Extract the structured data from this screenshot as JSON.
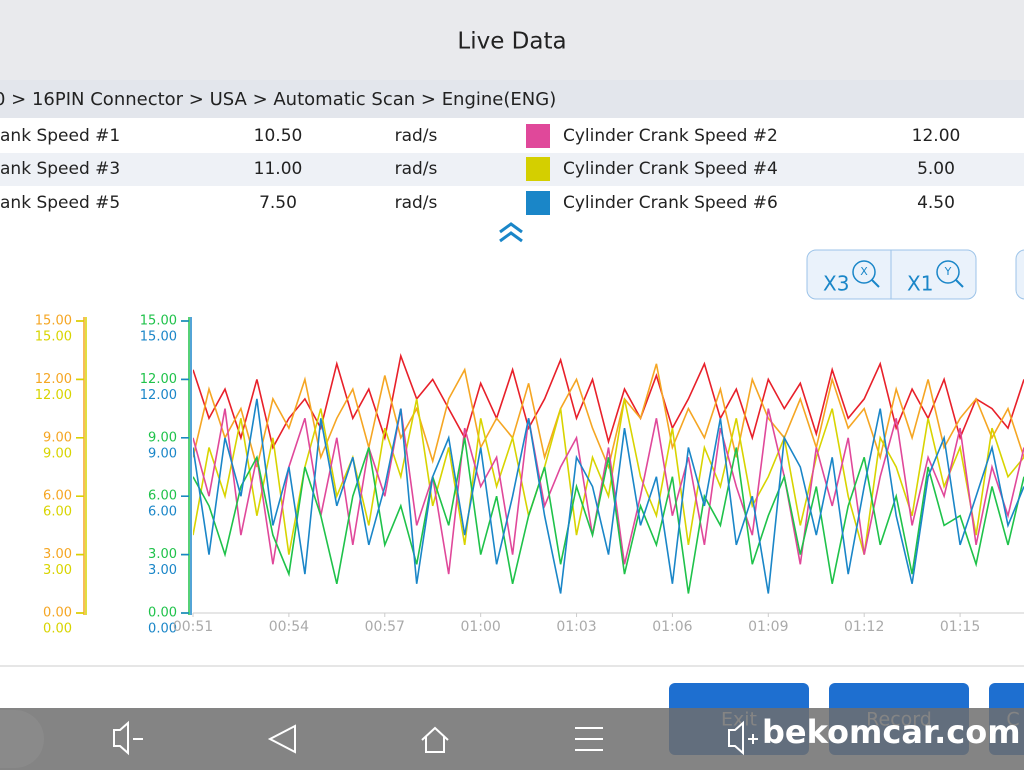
{
  "header": {
    "title": "Live Data"
  },
  "breadcrumb": "0 > 16PIN Connector  > USA  > Automatic Scan  > Engine(ENG)",
  "table": {
    "rows": [
      [
        "ank Speed #1",
        "10.50",
        "rad/s",
        "Cylinder Crank Speed #2",
        "12.00"
      ],
      [
        "ank Speed #3",
        "11.00",
        "rad/s",
        "Cylinder Crank Speed #4",
        "5.00"
      ],
      [
        "ank Speed #5",
        "7.50",
        "rad/s",
        "Cylinder Crank Speed #6",
        "4.50"
      ]
    ],
    "swatches": [
      "#e0489a",
      "#d4cf00",
      "#1a86c8"
    ]
  },
  "zoom": [
    {
      "label": "X3",
      "icon": "X"
    },
    {
      "label": "X1",
      "icon": "Y"
    }
  ],
  "chart_data": {
    "type": "line",
    "xlim": [
      51,
      77
    ],
    "xticks": [
      {
        "value": 51,
        "label": "00:51"
      },
      {
        "value": 54,
        "label": "00:54"
      },
      {
        "value": 57,
        "label": "00:57"
      },
      {
        "value": 60,
        "label": "01:00"
      },
      {
        "value": 63,
        "label": "01:03"
      },
      {
        "value": 66,
        "label": "01:06"
      },
      {
        "value": 69,
        "label": "01:09"
      },
      {
        "value": 72,
        "label": "01:12"
      },
      {
        "value": 75,
        "label": "01:15"
      }
    ],
    "ylim": [
      0,
      15
    ],
    "y_axes": [
      {
        "color": "#f5a623",
        "ticks": [
          {
            "value": 15,
            "label": "15.00"
          },
          {
            "value": 12,
            "label": "12.00"
          },
          {
            "value": 9,
            "label": "9.00"
          },
          {
            "value": 6,
            "label": "6.00"
          },
          {
            "value": 3,
            "label": "3.00"
          },
          {
            "value": 0,
            "label": "0.00"
          }
        ]
      },
      {
        "color": "#d8d400",
        "ticks": [
          {
            "value": 15,
            "label": "15.00"
          },
          {
            "value": 12,
            "label": "12.00"
          },
          {
            "value": 9,
            "label": "9.00"
          },
          {
            "value": 6,
            "label": "6.00"
          },
          {
            "value": 3,
            "label": "3.00"
          },
          {
            "value": 0,
            "label": "0.00"
          }
        ]
      },
      {
        "color": "#1fc24a",
        "ticks": [
          {
            "value": 15,
            "label": "15.00"
          },
          {
            "value": 12,
            "label": "12.00"
          },
          {
            "value": 9,
            "label": "9.00"
          },
          {
            "value": 6,
            "label": "6.00"
          },
          {
            "value": 3,
            "label": "3.00"
          },
          {
            "value": 0,
            "label": "0.00"
          }
        ]
      },
      {
        "color": "#1a86c8",
        "ticks": [
          {
            "value": 15,
            "label": "15.00"
          },
          {
            "value": 12,
            "label": "12.00"
          },
          {
            "value": 9,
            "label": "9.00"
          },
          {
            "value": 6,
            "label": "6.00"
          },
          {
            "value": 3,
            "label": "3.00"
          },
          {
            "value": 0,
            "label": "0.00"
          }
        ]
      }
    ],
    "x": [
      51,
      51.5,
      52,
      52.5,
      53,
      53.5,
      54,
      54.5,
      55,
      55.5,
      56,
      56.5,
      57,
      57.5,
      58,
      58.5,
      59,
      59.5,
      60,
      60.5,
      61,
      61.5,
      62,
      62.5,
      63,
      63.5,
      64,
      64.5,
      65,
      65.5,
      66,
      66.5,
      67,
      67.5,
      68,
      68.5,
      69,
      69.5,
      70,
      70.5,
      71,
      71.5,
      72,
      72.5,
      73,
      73.5,
      74,
      74.5,
      75,
      75.5,
      76,
      76.5,
      77
    ],
    "series": [
      {
        "color": "#e8202a",
        "values": [
          12.5,
          10.0,
          11.5,
          9.0,
          12.0,
          8.5,
          10.0,
          11.0,
          9.5,
          12.8,
          10.0,
          11.5,
          9.0,
          13.2,
          11.0,
          12.0,
          10.5,
          9.0,
          11.8,
          10.0,
          12.5,
          9.5,
          11.0,
          13.0,
          10.0,
          12.0,
          8.8,
          11.5,
          10.0,
          12.2,
          9.5,
          11.0,
          12.8,
          10.0,
          11.5,
          9.0,
          12.0,
          10.5,
          11.8,
          9.2,
          12.5,
          10.0,
          11.0,
          12.8,
          9.5,
          11.5,
          10.0,
          12.0,
          9.0,
          11.0,
          10.5,
          9.5,
          12.0
        ]
      },
      {
        "color": "#f5a623",
        "values": [
          8.0,
          11.5,
          9.0,
          10.5,
          7.5,
          11.0,
          9.5,
          12.0,
          8.0,
          10.0,
          11.5,
          8.5,
          12.2,
          9.0,
          10.5,
          7.8,
          11.0,
          12.5,
          8.5,
          10.0,
          9.0,
          11.8,
          8.0,
          10.5,
          12.0,
          9.5,
          7.5,
          11.0,
          10.0,
          12.8,
          8.5,
          10.5,
          9.0,
          11.5,
          8.0,
          12.0,
          10.0,
          9.0,
          11.0,
          8.5,
          12.0,
          9.5,
          10.5,
          8.0,
          11.5,
          9.0,
          12.0,
          8.5,
          10.0,
          11.0,
          9.0,
          10.5,
          8.0
        ]
      },
      {
        "color": "#d8d400",
        "values": [
          4.0,
          8.5,
          6.0,
          10.0,
          5.0,
          9.0,
          3.0,
          7.5,
          10.5,
          6.0,
          8.0,
          4.5,
          9.5,
          7.0,
          11.0,
          5.5,
          8.5,
          3.5,
          10.0,
          6.5,
          9.0,
          5.0,
          7.5,
          10.5,
          4.0,
          8.0,
          6.0,
          11.0,
          7.0,
          5.0,
          9.5,
          3.5,
          8.5,
          6.5,
          10.0,
          5.5,
          7.0,
          9.0,
          4.5,
          8.0,
          10.5,
          6.0,
          3.0,
          9.0,
          7.5,
          5.0,
          10.0,
          6.5,
          8.5,
          4.0,
          9.5,
          7.0,
          8.0
        ]
      },
      {
        "color": "#e0489a",
        "values": [
          9.0,
          6.0,
          10.5,
          4.0,
          8.0,
          2.5,
          7.5,
          10.0,
          5.0,
          9.0,
          3.5,
          8.5,
          6.0,
          10.5,
          4.5,
          7.0,
          2.0,
          9.5,
          6.5,
          8.0,
          3.0,
          10.0,
          5.5,
          7.5,
          9.0,
          4.0,
          8.5,
          2.5,
          6.0,
          10.0,
          5.0,
          8.0,
          3.5,
          9.5,
          6.5,
          4.0,
          10.5,
          7.0,
          2.5,
          8.5,
          5.5,
          9.0,
          3.0,
          7.0,
          10.0,
          4.5,
          8.0,
          6.0,
          9.5,
          3.5,
          7.5,
          5.0,
          8.5
        ]
      },
      {
        "color": "#1fc24a",
        "values": [
          7.0,
          5.5,
          3.0,
          6.5,
          8.0,
          4.0,
          2.0,
          7.5,
          5.0,
          1.5,
          6.0,
          8.5,
          3.5,
          5.5,
          2.5,
          7.0,
          4.5,
          9.0,
          3.0,
          6.0,
          1.5,
          5.0,
          7.5,
          2.5,
          6.5,
          4.0,
          8.0,
          2.0,
          5.5,
          3.5,
          7.0,
          1.0,
          6.0,
          4.5,
          8.5,
          2.5,
          5.0,
          7.0,
          3.0,
          6.5,
          1.5,
          5.5,
          8.0,
          3.5,
          6.0,
          2.0,
          7.5,
          4.5,
          5.0,
          2.5,
          6.5,
          3.5,
          7.0
        ]
      },
      {
        "color": "#1a86c8",
        "values": [
          8.5,
          3.0,
          9.0,
          6.0,
          11.0,
          4.5,
          7.5,
          2.0,
          10.0,
          5.5,
          8.0,
          3.5,
          6.5,
          10.5,
          1.5,
          7.0,
          9.0,
          4.0,
          8.5,
          2.5,
          6.0,
          10.0,
          5.0,
          1.0,
          8.0,
          6.5,
          3.0,
          9.5,
          4.5,
          7.0,
          1.5,
          8.5,
          5.5,
          10.0,
          3.5,
          6.0,
          1.0,
          9.0,
          7.5,
          4.0,
          8.0,
          2.0,
          6.5,
          10.5,
          5.0,
          1.5,
          7.0,
          9.0,
          3.5,
          6.0,
          8.5,
          4.5,
          6.5
        ]
      }
    ]
  },
  "buttons": [
    "Exit",
    "Record",
    "C"
  ],
  "watermark": "bekomcar.com"
}
